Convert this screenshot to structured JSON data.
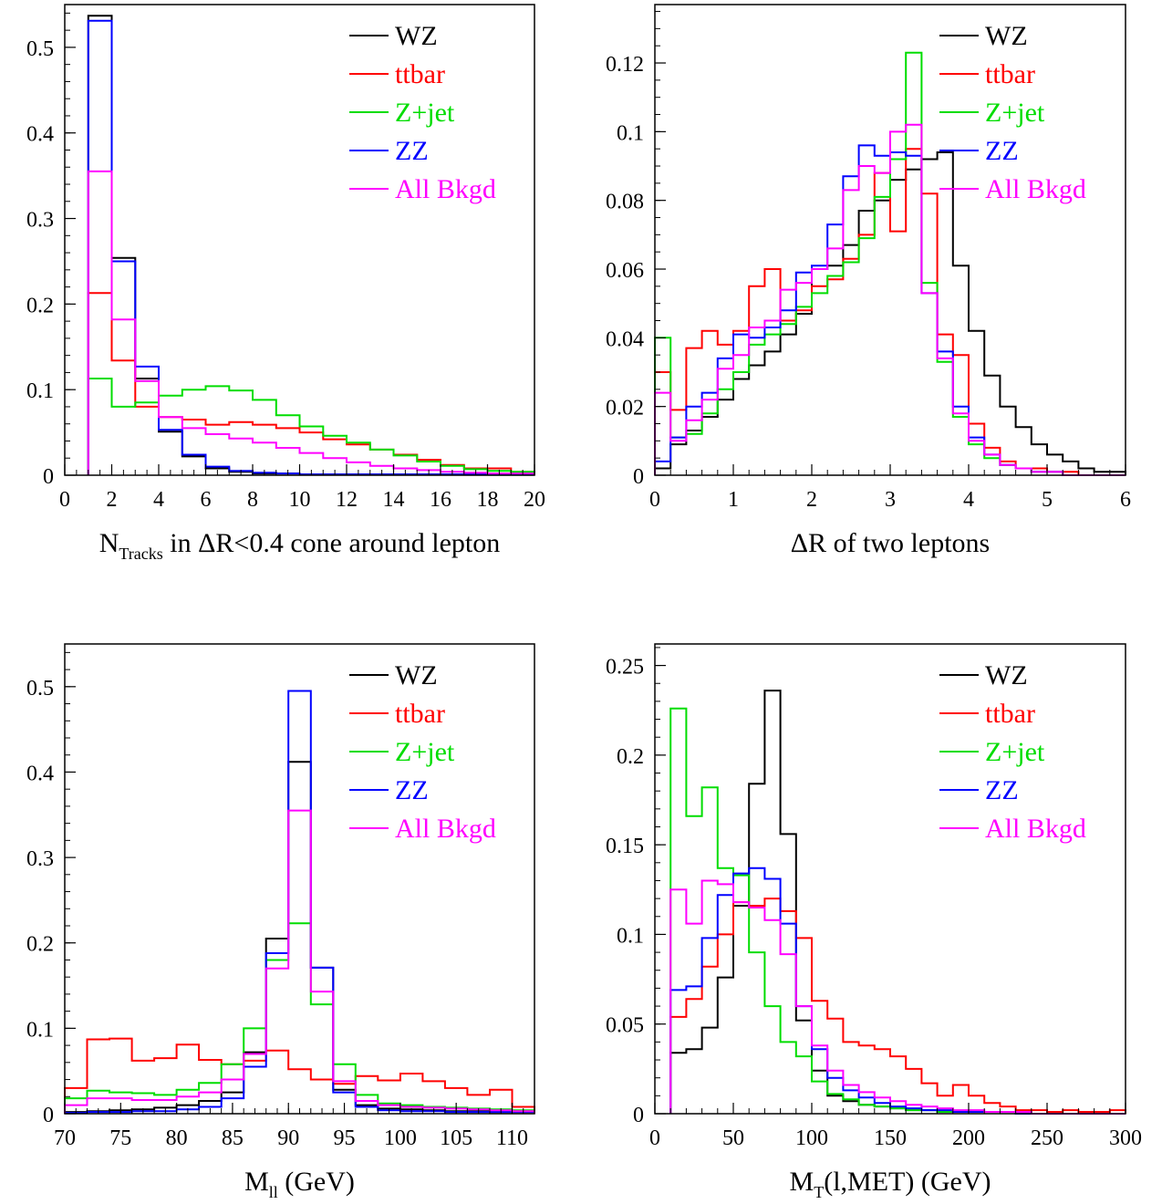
{
  "chart_data": [
    {
      "type": "histogram",
      "xlabel": "N",
      "xlabel_sub": "Tracks",
      "xlabel_rest": " in ΔR<0.4 cone around lepton",
      "xlim": [
        0,
        20
      ],
      "ylim": [
        0,
        0.55
      ],
      "xticks": [
        {
          "v": 0,
          "t": "0"
        },
        {
          "v": 2,
          "t": "2"
        },
        {
          "v": 4,
          "t": "4"
        },
        {
          "v": 6,
          "t": "6"
        },
        {
          "v": 8,
          "t": "8"
        },
        {
          "v": 10,
          "t": "10"
        },
        {
          "v": 12,
          "t": "12"
        },
        {
          "v": 14,
          "t": "14"
        },
        {
          "v": 16,
          "t": "16"
        },
        {
          "v": 18,
          "t": "18"
        },
        {
          "v": 20,
          "t": "20"
        }
      ],
      "yticks": [
        {
          "v": 0,
          "t": "0"
        },
        {
          "v": 0.1,
          "t": "0.1"
        },
        {
          "v": 0.2,
          "t": "0.2"
        },
        {
          "v": 0.3,
          "t": "0.3"
        },
        {
          "v": 0.4,
          "t": "0.4"
        },
        {
          "v": 0.5,
          "t": "0.5"
        }
      ],
      "x_minor": 0.5,
      "y_minor": 0.02,
      "edges": [
        1,
        2,
        3,
        4,
        5,
        6,
        7,
        8,
        9,
        10,
        11,
        12,
        13,
        14,
        15,
        16,
        17,
        18,
        19,
        20
      ],
      "series": [
        {
          "name": "WZ",
          "color": "#000000",
          "values": [
            0.537,
            0.254,
            0.113,
            0.051,
            0.022,
            0.008,
            0.004,
            0.002,
            0.002,
            0.001,
            0.001,
            0.001,
            0.001,
            0.001,
            0.001,
            0.001,
            0.001,
            0.001,
            0.001
          ]
        },
        {
          "name": "ttbar",
          "color": "#ff0000",
          "values": [
            0.213,
            0.134,
            0.08,
            0.068,
            0.065,
            0.059,
            0.062,
            0.059,
            0.055,
            0.05,
            0.042,
            0.036,
            0.03,
            0.024,
            0.018,
            0.012,
            0.008,
            0.008,
            0.004
          ]
        },
        {
          "name": "Z+jet",
          "color": "#00dd00",
          "values": [
            0.113,
            0.08,
            0.085,
            0.093,
            0.1,
            0.104,
            0.099,
            0.088,
            0.07,
            0.057,
            0.046,
            0.038,
            0.03,
            0.023,
            0.016,
            0.011,
            0.007,
            0.005,
            0.004
          ]
        },
        {
          "name": "ZZ",
          "color": "#0000ff",
          "values": [
            0.531,
            0.25,
            0.127,
            0.053,
            0.024,
            0.01,
            0.005,
            0.003,
            0.002,
            0.001,
            0.001,
            0.001,
            0.001,
            0.001,
            0.001,
            0.001,
            0.001,
            0.001,
            0.001
          ]
        },
        {
          "name": "All Bkgd",
          "color": "#ff00ff",
          "values": [
            0.355,
            0.182,
            0.11,
            0.068,
            0.055,
            0.048,
            0.043,
            0.038,
            0.032,
            0.026,
            0.02,
            0.015,
            0.011,
            0.008,
            0.006,
            0.004,
            0.003,
            0.002,
            0.002
          ]
        }
      ]
    },
    {
      "type": "histogram",
      "xlabel": "ΔR of two leptons",
      "xlim": [
        0,
        6
      ],
      "ylim": [
        0,
        0.137
      ],
      "xticks": [
        {
          "v": 0,
          "t": "0"
        },
        {
          "v": 1,
          "t": "1"
        },
        {
          "v": 2,
          "t": "2"
        },
        {
          "v": 3,
          "t": "3"
        },
        {
          "v": 4,
          "t": "4"
        },
        {
          "v": 5,
          "t": "5"
        },
        {
          "v": 6,
          "t": "6"
        }
      ],
      "yticks": [
        {
          "v": 0,
          "t": "0"
        },
        {
          "v": 0.02,
          "t": "0.02"
        },
        {
          "v": 0.04,
          "t": "0.04"
        },
        {
          "v": 0.06,
          "t": "0.06"
        },
        {
          "v": 0.08,
          "t": "0.08"
        },
        {
          "v": 0.1,
          "t": "0.1"
        },
        {
          "v": 0.12,
          "t": "0.12"
        }
      ],
      "x_minor": 0.2,
      "y_minor": 0.005,
      "edges": [
        0,
        0.2,
        0.4,
        0.6,
        0.8,
        1.0,
        1.2,
        1.4,
        1.6,
        1.8,
        2.0,
        2.2,
        2.4,
        2.6,
        2.8,
        3.0,
        3.2,
        3.4,
        3.6,
        3.8,
        4.0,
        4.2,
        4.4,
        4.6,
        4.8,
        5.0,
        5.2,
        5.4,
        5.6,
        5.8,
        6.0
      ],
      "series": [
        {
          "name": "WZ",
          "color": "#000000",
          "values": [
            0.002,
            0.009,
            0.013,
            0.017,
            0.022,
            0.028,
            0.032,
            0.036,
            0.041,
            0.047,
            0.06,
            0.061,
            0.067,
            0.077,
            0.08,
            0.086,
            0.089,
            0.092,
            0.094,
            0.061,
            0.042,
            0.029,
            0.02,
            0.014,
            0.009,
            0.006,
            0.004,
            0.002,
            0.001,
            0.001
          ]
        },
        {
          "name": "ttbar",
          "color": "#ff0000",
          "values": [
            0.03,
            0.019,
            0.037,
            0.042,
            0.038,
            0.042,
            0.055,
            0.06,
            0.045,
            0.048,
            0.055,
            0.057,
            0.063,
            0.07,
            0.088,
            0.071,
            0.095,
            0.082,
            0.041,
            0.035,
            0.015,
            0.008,
            0.004,
            0.002,
            0.002,
            0.001,
            0.001,
            0.0,
            0.0,
            0.0
          ]
        },
        {
          "name": "Z+jet",
          "color": "#00dd00",
          "values": [
            0.04,
            0.011,
            0.012,
            0.018,
            0.025,
            0.03,
            0.038,
            0.041,
            0.044,
            0.049,
            0.053,
            0.058,
            0.062,
            0.069,
            0.081,
            0.092,
            0.123,
            0.056,
            0.033,
            0.017,
            0.009,
            0.005,
            0.003,
            0.002,
            0.001,
            0.001,
            0.0,
            0.0,
            0.0,
            0.0
          ]
        },
        {
          "name": "ZZ",
          "color": "#0000ff",
          "values": [
            0.004,
            0.011,
            0.02,
            0.024,
            0.034,
            0.041,
            0.04,
            0.043,
            0.048,
            0.059,
            0.061,
            0.073,
            0.087,
            0.096,
            0.093,
            0.094,
            0.093,
            0.053,
            0.036,
            0.02,
            0.011,
            0.006,
            0.003,
            0.002,
            0.001,
            0.001,
            0.0,
            0.0,
            0.0,
            0.0
          ]
        },
        {
          "name": "All Bkgd",
          "color": "#ff00ff",
          "values": [
            0.024,
            0.01,
            0.016,
            0.022,
            0.031,
            0.035,
            0.043,
            0.045,
            0.054,
            0.056,
            0.06,
            0.066,
            0.083,
            0.09,
            0.088,
            0.1,
            0.102,
            0.053,
            0.034,
            0.018,
            0.01,
            0.006,
            0.003,
            0.002,
            0.001,
            0.001,
            0.0,
            0.0,
            0.0,
            0.0
          ]
        }
      ]
    },
    {
      "type": "histogram",
      "xlabel": "M",
      "xlabel_sub": "ll",
      "xlabel_rest": " (GeV)",
      "xlim": [
        70,
        112
      ],
      "ylim": [
        0,
        0.55
      ],
      "xticks": [
        {
          "v": 70,
          "t": "70"
        },
        {
          "v": 75,
          "t": "75"
        },
        {
          "v": 80,
          "t": "80"
        },
        {
          "v": 85,
          "t": "85"
        },
        {
          "v": 90,
          "t": "90"
        },
        {
          "v": 95,
          "t": "95"
        },
        {
          "v": 100,
          "t": "100"
        },
        {
          "v": 105,
          "t": "105"
        },
        {
          "v": 110,
          "t": "110"
        }
      ],
      "yticks": [
        {
          "v": 0,
          "t": "0"
        },
        {
          "v": 0.1,
          "t": "0.1"
        },
        {
          "v": 0.2,
          "t": "0.2"
        },
        {
          "v": 0.3,
          "t": "0.3"
        },
        {
          "v": 0.4,
          "t": "0.4"
        },
        {
          "v": 0.5,
          "t": "0.5"
        }
      ],
      "x_minor": 1,
      "y_minor": 0.02,
      "edges": [
        70,
        72,
        74,
        76,
        78,
        80,
        82,
        84,
        86,
        88,
        90,
        92,
        94,
        96,
        98,
        100,
        102,
        104,
        106,
        108,
        110,
        112
      ],
      "series": [
        {
          "name": "WZ",
          "color": "#000000",
          "values": [
            0.002,
            0.003,
            0.004,
            0.005,
            0.007,
            0.01,
            0.015,
            0.025,
            0.072,
            0.205,
            0.412,
            0.171,
            0.028,
            0.01,
            0.006,
            0.005,
            0.004,
            0.003,
            0.003,
            0.002,
            0.002
          ]
        },
        {
          "name": "ttbar",
          "color": "#ff0000",
          "values": [
            0.03,
            0.087,
            0.088,
            0.062,
            0.065,
            0.081,
            0.063,
            0.058,
            0.062,
            0.074,
            0.052,
            0.04,
            0.035,
            0.044,
            0.039,
            0.047,
            0.038,
            0.03,
            0.022,
            0.028,
            0.008
          ]
        },
        {
          "name": "Z+jet",
          "color": "#00dd00",
          "values": [
            0.018,
            0.027,
            0.025,
            0.024,
            0.022,
            0.028,
            0.036,
            0.058,
            0.1,
            0.18,
            0.223,
            0.128,
            0.058,
            0.022,
            0.012,
            0.01,
            0.008,
            0.007,
            0.006,
            0.005,
            0.004
          ]
        },
        {
          "name": "ZZ",
          "color": "#0000ff",
          "values": [
            0.001,
            0.002,
            0.002,
            0.003,
            0.003,
            0.005,
            0.008,
            0.018,
            0.055,
            0.188,
            0.495,
            0.171,
            0.025,
            0.008,
            0.004,
            0.003,
            0.003,
            0.002,
            0.002,
            0.002,
            0.002
          ]
        },
        {
          "name": "All Bkgd",
          "color": "#ff00ff",
          "values": [
            0.01,
            0.018,
            0.018,
            0.016,
            0.016,
            0.02,
            0.025,
            0.04,
            0.07,
            0.17,
            0.355,
            0.143,
            0.038,
            0.015,
            0.01,
            0.008,
            0.007,
            0.006,
            0.005,
            0.004,
            0.003
          ]
        }
      ]
    },
    {
      "type": "histogram",
      "xlabel": "M",
      "xlabel_sub": "T",
      "xlabel_rest": "(l,MET) (GeV)",
      "xlim": [
        0,
        300
      ],
      "ylim": [
        0,
        0.262
      ],
      "xticks": [
        {
          "v": 0,
          "t": "0"
        },
        {
          "v": 50,
          "t": "50"
        },
        {
          "v": 100,
          "t": "100"
        },
        {
          "v": 150,
          "t": "150"
        },
        {
          "v": 200,
          "t": "200"
        },
        {
          "v": 250,
          "t": "250"
        },
        {
          "v": 300,
          "t": "300"
        }
      ],
      "yticks": [
        {
          "v": 0,
          "t": "0"
        },
        {
          "v": 0.05,
          "t": "0.05"
        },
        {
          "v": 0.1,
          "t": "0.1"
        },
        {
          "v": 0.15,
          "t": "0.15"
        },
        {
          "v": 0.2,
          "t": "0.2"
        },
        {
          "v": 0.25,
          "t": "0.25"
        }
      ],
      "x_minor": 10,
      "y_minor": 0.01,
      "edges": [
        10,
        20,
        30,
        40,
        50,
        60,
        70,
        80,
        90,
        100,
        110,
        120,
        130,
        140,
        150,
        160,
        170,
        180,
        190,
        200,
        210,
        220,
        230,
        240,
        250,
        260,
        270,
        280,
        290,
        300
      ],
      "series": [
        {
          "name": "WZ",
          "color": "#000000",
          "values": [
            0.034,
            0.036,
            0.048,
            0.076,
            0.116,
            0.184,
            0.236,
            0.156,
            0.052,
            0.024,
            0.01,
            0.007,
            0.005,
            0.004,
            0.003,
            0.002,
            0.002,
            0.001,
            0.001,
            0.001,
            0.001,
            0.001,
            0.001,
            0.0,
            0.0,
            0.0,
            0.0,
            0.0,
            0.0
          ]
        },
        {
          "name": "ttbar",
          "color": "#ff0000",
          "values": [
            0.054,
            0.064,
            0.082,
            0.1,
            0.118,
            0.116,
            0.12,
            0.113,
            0.098,
            0.063,
            0.053,
            0.04,
            0.038,
            0.036,
            0.032,
            0.025,
            0.017,
            0.01,
            0.016,
            0.01,
            0.006,
            0.004,
            0.002,
            0.002,
            0.001,
            0.002,
            0.001,
            0.001,
            0.002
          ]
        },
        {
          "name": "Z+jet",
          "color": "#00dd00",
          "values": [
            0.226,
            0.166,
            0.182,
            0.137,
            0.133,
            0.09,
            0.06,
            0.04,
            0.032,
            0.018,
            0.011,
            0.008,
            0.005,
            0.004,
            0.003,
            0.002,
            0.002,
            0.001,
            0.001,
            0.001,
            0.001,
            0.001,
            0.0,
            0.0,
            0.0,
            0.0,
            0.0,
            0.0,
            0.0
          ]
        },
        {
          "name": "ZZ",
          "color": "#0000ff",
          "values": [
            0.069,
            0.071,
            0.098,
            0.122,
            0.134,
            0.137,
            0.131,
            0.106,
            0.06,
            0.036,
            0.02,
            0.013,
            0.009,
            0.006,
            0.004,
            0.003,
            0.002,
            0.002,
            0.001,
            0.001,
            0.001,
            0.001,
            0.0,
            0.0,
            0.0,
            0.0,
            0.0,
            0.0,
            0.0
          ]
        },
        {
          "name": "All Bkgd",
          "color": "#ff00ff",
          "values": [
            0.125,
            0.106,
            0.13,
            0.128,
            0.118,
            0.115,
            0.108,
            0.089,
            0.06,
            0.038,
            0.024,
            0.016,
            0.012,
            0.009,
            0.007,
            0.005,
            0.004,
            0.003,
            0.002,
            0.002,
            0.001,
            0.001,
            0.001,
            0.0,
            0.0,
            0.0,
            0.0,
            0.0,
            0.0
          ]
        }
      ]
    }
  ]
}
